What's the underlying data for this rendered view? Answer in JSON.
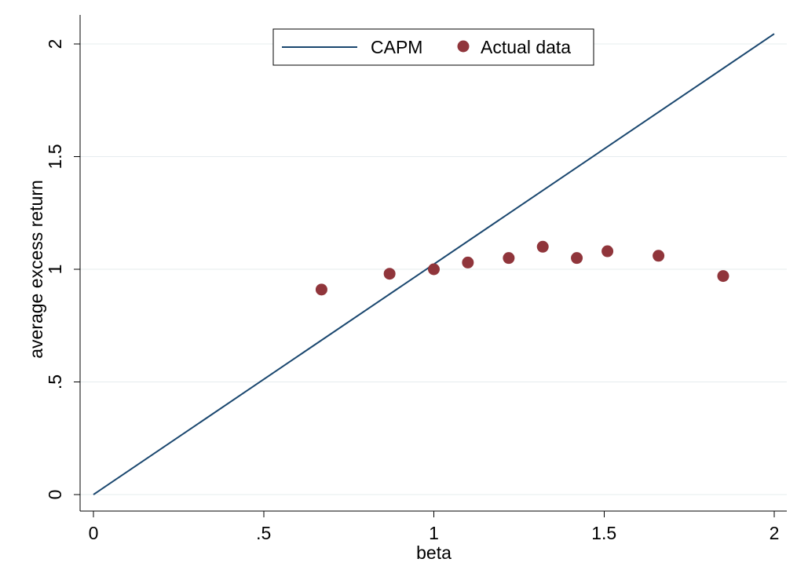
{
  "chart_data": {
    "type": "scatter",
    "title": "",
    "xlabel": "beta",
    "ylabel": "average excess return",
    "xlim": [
      0,
      2
    ],
    "ylim": [
      0,
      2
    ],
    "x_ticks": [
      {
        "value": 0,
        "label": "0"
      },
      {
        "value": 0.5,
        "label": ".5"
      },
      {
        "value": 1,
        "label": "1"
      },
      {
        "value": 1.5,
        "label": "1.5"
      },
      {
        "value": 2,
        "label": "2"
      }
    ],
    "y_ticks": [
      {
        "value": 0,
        "label": "0"
      },
      {
        "value": 0.5,
        "label": ".5"
      },
      {
        "value": 1,
        "label": "1"
      },
      {
        "value": 1.5,
        "label": "1.5"
      },
      {
        "value": 2,
        "label": "2"
      }
    ],
    "grid": "horizontal",
    "legend_position": "top-center",
    "series": [
      {
        "name": "CAPM",
        "kind": "line",
        "color": "#1a476f",
        "x": [
          0,
          2
        ],
        "y": [
          0,
          2.045
        ]
      },
      {
        "name": "Actual data",
        "kind": "scatter",
        "color": "#90353b",
        "x": [
          0.67,
          0.87,
          1.0,
          1.1,
          1.22,
          1.32,
          1.42,
          1.51,
          1.66,
          1.85
        ],
        "y": [
          0.91,
          0.98,
          1.0,
          1.03,
          1.05,
          1.1,
          1.05,
          1.08,
          1.06,
          0.97
        ]
      }
    ]
  }
}
